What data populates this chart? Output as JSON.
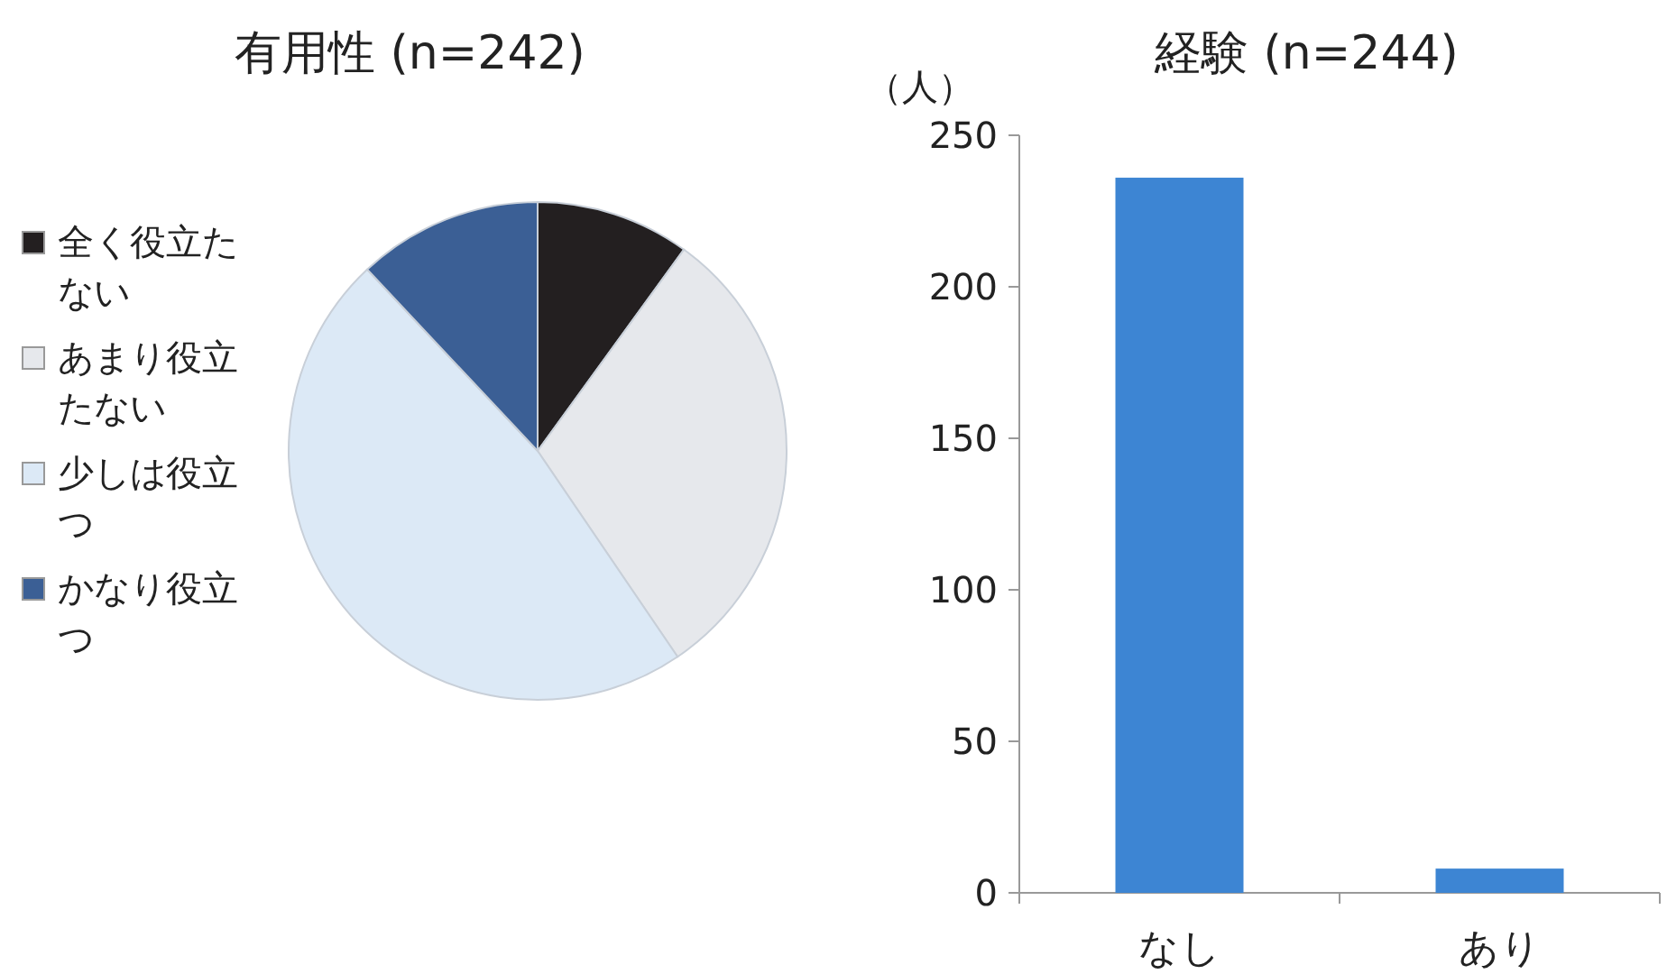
{
  "chart_data": [
    {
      "type": "pie",
      "title": "有用性 (n=242)",
      "categories": [
        "全く役立たない",
        "あまり役立たない",
        "少しは役立つ",
        "かなり役立つ"
      ],
      "values": [
        10,
        30.5,
        47.5,
        12
      ],
      "colors": [
        "#231f20",
        "#e6e8ec",
        "#dce9f6",
        "#3b5f95"
      ],
      "legend": "left"
    },
    {
      "type": "bar",
      "title": "経験 (n=244)",
      "ylabel": "（人）",
      "categories": [
        "なし",
        "あり"
      ],
      "values": [
        236,
        8
      ],
      "color": "#3d85d3",
      "ylim": [
        0,
        250
      ],
      "yticks": [
        0,
        50,
        100,
        150,
        200,
        250
      ],
      "grid": false
    }
  ]
}
